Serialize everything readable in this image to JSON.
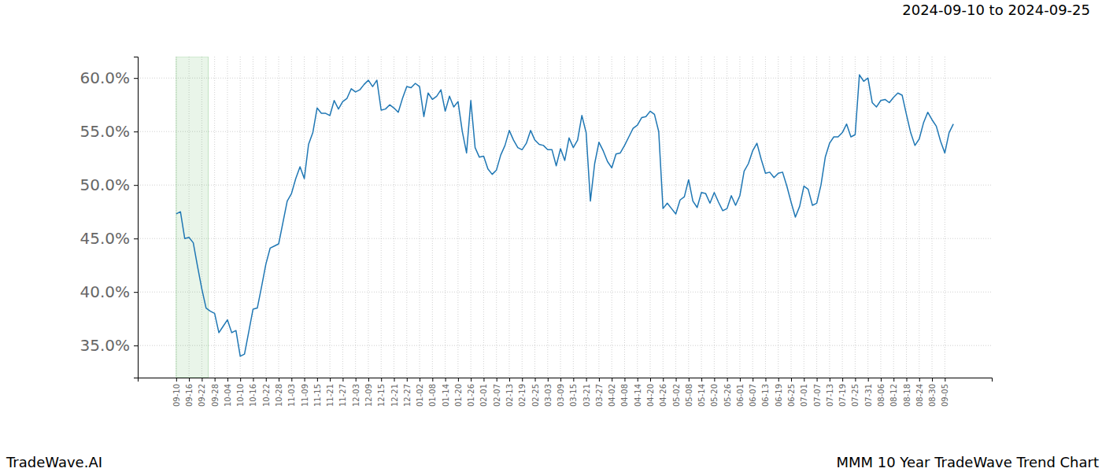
{
  "chart_data": {
    "type": "line",
    "title": "2024-09-10 to 2024-09-25",
    "annotations": [
      "TradeWave.AI",
      "MMM 10 Year TradeWave Trend Chart"
    ],
    "color": "#1f77b4",
    "grid": true,
    "highlight": [
      0,
      7.5
    ],
    "ylim": [
      32,
      62
    ],
    "yticks": [
      {
        "value": 35,
        "label": "35.0%"
      },
      {
        "value": 40,
        "label": "40.0%"
      },
      {
        "value": 45,
        "label": "45.0%"
      },
      {
        "value": 50,
        "label": "50.0%"
      },
      {
        "value": 55,
        "label": "55.0%"
      },
      {
        "value": 60,
        "label": "60.0%"
      }
    ],
    "categories": [
      "09-10",
      null,
      null,
      "09-16",
      null,
      null,
      "09-22",
      null,
      null,
      "09-28",
      null,
      null,
      "10-04",
      null,
      null,
      "10-10",
      null,
      null,
      "10-16",
      null,
      null,
      "10-22",
      null,
      null,
      "10-28",
      null,
      null,
      "11-03",
      null,
      null,
      "11-09",
      null,
      null,
      "11-15",
      null,
      null,
      "11-21",
      null,
      null,
      "11-27",
      null,
      null,
      "12-03",
      null,
      null,
      "12-09",
      null,
      null,
      "12-15",
      null,
      null,
      "12-21",
      null,
      null,
      "12-27",
      null,
      null,
      "01-02",
      null,
      null,
      "01-08",
      null,
      null,
      "01-14",
      null,
      null,
      "01-20",
      null,
      null,
      "01-26",
      null,
      null,
      "02-01",
      null,
      null,
      "02-07",
      null,
      null,
      "02-13",
      null,
      null,
      "02-19",
      null,
      null,
      "02-25",
      null,
      null,
      "03-03",
      null,
      null,
      "03-09",
      null,
      null,
      "03-15",
      null,
      null,
      "03-21",
      null,
      null,
      "03-27",
      null,
      null,
      "04-02",
      null,
      null,
      "04-08",
      null,
      null,
      "04-14",
      null,
      null,
      "04-20",
      null,
      null,
      "04-26",
      null,
      null,
      "05-02",
      null,
      null,
      "05-08",
      null,
      null,
      "05-14",
      null,
      null,
      "05-20",
      null,
      null,
      "05-26",
      null,
      null,
      "06-01",
      null,
      null,
      "06-07",
      null,
      null,
      "06-13",
      null,
      null,
      "06-19",
      null,
      null,
      "06-25",
      null,
      null,
      "07-01",
      null,
      null,
      "07-07",
      null,
      null,
      "07-13",
      null,
      null,
      "07-19",
      null,
      null,
      "07-25",
      null,
      null,
      "07-31",
      null,
      null,
      "08-06",
      null,
      null,
      "08-12",
      null,
      null,
      "08-18",
      null,
      null,
      "08-24",
      null,
      null,
      "08-30",
      null,
      null,
      "09-05",
      null,
      null
    ],
    "values": [
      47.3,
      47.5,
      45.0,
      45.1,
      44.6,
      42.4,
      40.3,
      38.5,
      38.2,
      38.0,
      36.2,
      36.8,
      37.4,
      36.2,
      36.4,
      34.0,
      34.2,
      36.3,
      38.4,
      38.5,
      40.5,
      42.6,
      44.1,
      44.3,
      44.5,
      46.5,
      48.5,
      49.2,
      50.6,
      51.7,
      50.6,
      53.8,
      54.9,
      57.2,
      56.7,
      56.7,
      56.5,
      57.9,
      57.1,
      57.8,
      58.1,
      59.0,
      58.7,
      58.9,
      59.4,
      59.8,
      59.2,
      59.8,
      57.0,
      57.1,
      57.5,
      57.2,
      56.8,
      58.1,
      59.2,
      59.1,
      59.5,
      59.2,
      56.4,
      58.6,
      58.0,
      58.3,
      58.9,
      56.9,
      58.3,
      57.3,
      57.8,
      55.0,
      53.0,
      57.9,
      53.5,
      52.6,
      52.7,
      51.5,
      51.0,
      51.4,
      52.8,
      53.7,
      55.1,
      54.2,
      53.5,
      53.3,
      53.9,
      55.1,
      54.2,
      53.8,
      53.7,
      53.3,
      53.3,
      51.8,
      53.4,
      52.3,
      54.4,
      53.5,
      54.2,
      56.5,
      54.9,
      48.5,
      52.0,
      54.0,
      53.2,
      52.2,
      51.6,
      52.9,
      53.0,
      53.7,
      54.5,
      55.3,
      55.6,
      56.3,
      56.4,
      56.9,
      56.6,
      55.0,
      47.8,
      48.3,
      47.8,
      47.3,
      48.6,
      48.9,
      50.5,
      48.5,
      47.9,
      49.3,
      49.2,
      48.3,
      49.3,
      48.4,
      47.6,
      47.8,
      49.0,
      48.1,
      49.0,
      51.3,
      52.0,
      53.2,
      53.9,
      52.4,
      51.1,
      51.2,
      50.7,
      51.1,
      51.2,
      49.9,
      48.4,
      47.0,
      48.0,
      49.9,
      49.6,
      48.1,
      48.3,
      50.0,
      52.6,
      53.9,
      54.5,
      54.5,
      54.9,
      55.7,
      54.5,
      54.7,
      60.3,
      59.7,
      60.0,
      57.7,
      57.3,
      57.9,
      58.0,
      57.7,
      58.2,
      58.6,
      58.4,
      56.6,
      54.9,
      53.7,
      54.3,
      55.8,
      56.8,
      56.1,
      55.5,
      54.1,
      53.0,
      54.9,
      55.7
    ]
  }
}
